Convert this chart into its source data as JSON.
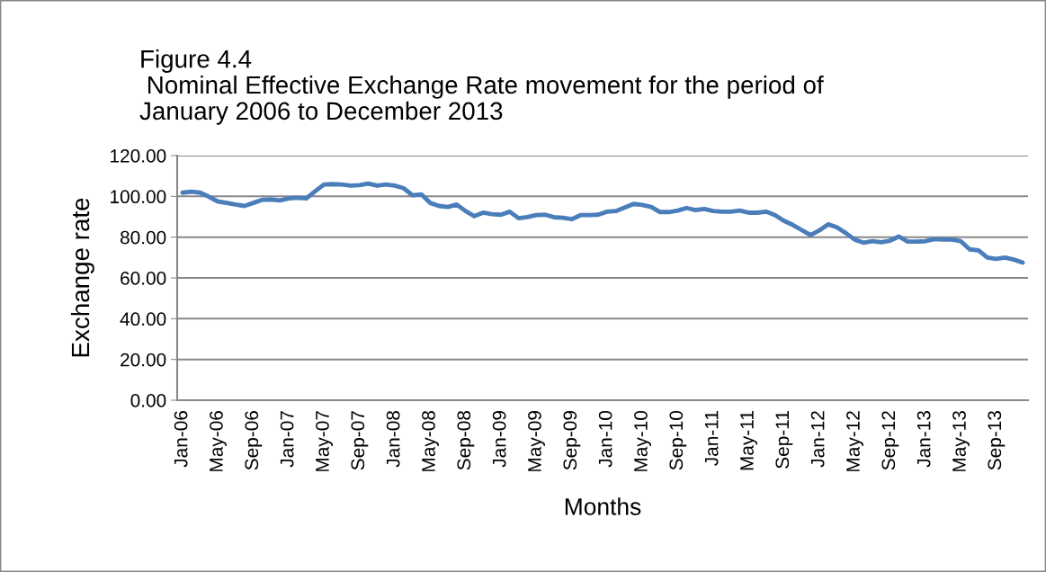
{
  "chart_data": {
    "type": "line",
    "title": "Figure 4.4\n Nominal Effective Exchange Rate movement for the period of\nJanuary 2006 to December 2013",
    "xlabel": "Months",
    "ylabel": "Exchange rate",
    "categories": [
      "Jan-06",
      null,
      null,
      null,
      "May-06",
      null,
      null,
      null,
      "Sep-06",
      null,
      null,
      null,
      "Jan-07",
      null,
      null,
      null,
      "May-07",
      null,
      null,
      null,
      "Sep-07",
      null,
      null,
      null,
      "Jan-08",
      null,
      null,
      null,
      "May-08",
      null,
      null,
      null,
      "Sep-08",
      null,
      null,
      null,
      "Jan-09",
      null,
      null,
      null,
      "May-09",
      null,
      null,
      null,
      "Sep-09",
      null,
      null,
      null,
      "Jan-10",
      null,
      null,
      null,
      "May-10",
      null,
      null,
      null,
      "Sep-10",
      null,
      null,
      null,
      "Jan-11",
      null,
      null,
      null,
      "May-11",
      null,
      null,
      null,
      "Sep-11",
      null,
      null,
      null,
      "Jan-12",
      null,
      null,
      null,
      "May-12",
      null,
      null,
      null,
      "Sep-12",
      null,
      null,
      null,
      "Jan-13",
      null,
      null,
      null,
      "May-13",
      null,
      null,
      null,
      "Sep-13",
      null,
      null,
      null
    ],
    "series": [
      {
        "color": "#4a7ebb",
        "values": [
          101.8,
          102.3,
          101.8,
          99.8,
          97.5,
          96.8,
          96.0,
          95.3,
          96.8,
          98.3,
          98.5,
          98.0,
          99.0,
          99.3,
          99.0,
          102.5,
          105.8,
          106.0,
          105.8,
          105.3,
          105.5,
          106.3,
          105.3,
          105.8,
          105.3,
          104.0,
          100.5,
          101.0,
          96.8,
          95.3,
          94.8,
          96.0,
          92.8,
          90.3,
          92.0,
          91.3,
          91.0,
          92.5,
          89.3,
          89.8,
          90.8,
          91.0,
          89.8,
          89.5,
          88.8,
          90.8,
          90.8,
          91.0,
          92.5,
          92.8,
          94.5,
          96.3,
          95.8,
          94.8,
          92.3,
          92.3,
          93.0,
          94.3,
          93.3,
          93.8,
          92.8,
          92.5,
          92.5,
          93.0,
          92.0,
          92.0,
          92.5,
          90.8,
          88.0,
          86.0,
          83.5,
          81.0,
          83.3,
          86.3,
          84.8,
          82.0,
          78.8,
          77.3,
          78.0,
          77.5,
          78.3,
          80.3,
          77.8,
          77.8,
          78.0,
          79.0,
          78.8,
          78.8,
          78.0,
          74.0,
          73.5,
          70.0,
          69.3,
          70.0,
          69.0,
          67.5
        ]
      }
    ],
    "ylim": [
      0,
      120
    ],
    "yticks": [
      {
        "value": 0,
        "label": "0.00"
      },
      {
        "value": 20,
        "label": "20.00"
      },
      {
        "value": 40,
        "label": "40.00"
      },
      {
        "value": 60,
        "label": "60.00"
      },
      {
        "value": 80,
        "label": "80.00"
      },
      {
        "value": 100,
        "label": "100.00"
      },
      {
        "value": 120,
        "label": "120.00"
      }
    ],
    "grid": "y",
    "marker": "none",
    "line_style": "solid"
  }
}
